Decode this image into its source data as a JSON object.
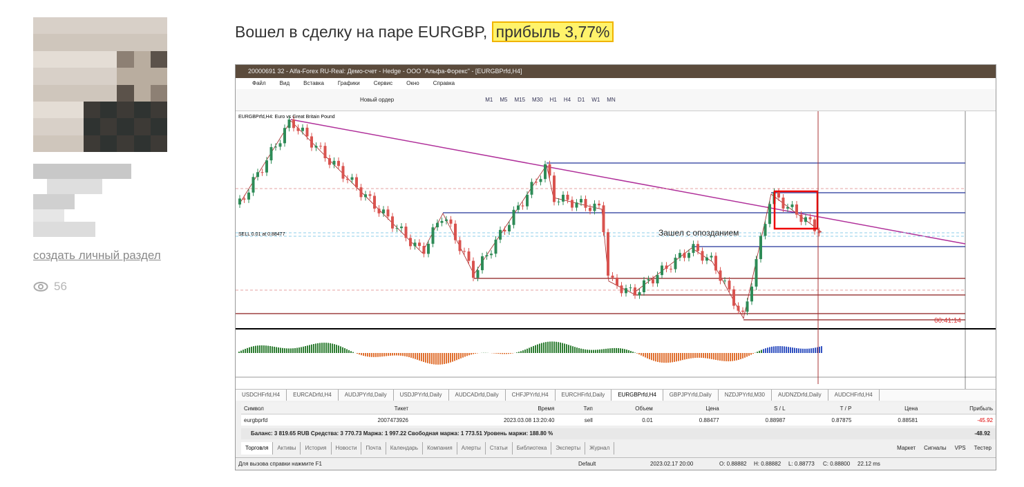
{
  "sidebar": {
    "link": "создать личный раздел",
    "views": "56"
  },
  "post": {
    "title": "Вошел в сделку на паре EURGBP,",
    "highlight": "прибыль 3,77%"
  },
  "terminal": {
    "window_title": "20000691 32 - Alfa-Forex RU-Real: Демо-счет - Hedge - ООО \"Альфа-Форекс\" - [EURGBPrfd,H4]",
    "menu": [
      "Файл",
      "Вид",
      "Вставка",
      "Графики",
      "Сервис",
      "Окно",
      "Справка"
    ],
    "new_order": "Новый ордер",
    "timeframes": [
      "M1",
      "M5",
      "M15",
      "M30",
      "H1",
      "H4",
      "D1",
      "W1",
      "MN"
    ],
    "chart_label": "EURGBPrfd,H4: Euro vs Great Britain Pound",
    "order_line": "SELL 0.01 at 0.88477",
    "annotation": "Зашел с опозданием",
    "timer": "00:41:14",
    "symbol_tabs": [
      "USDCHFrfd,H4",
      "EURCADrfd,H4",
      "AUDJPYrfd,Daily",
      "USDJPYrfd,Daily",
      "AUDCADrfd,Daily",
      "CHFJPYrfd,H4",
      "EURCHFrfd,Daily",
      "EURGBPrfd,H4",
      "GBPJPYrfd,Daily",
      "NZDJPYrfd,M30",
      "AUDNZDrfd,Daily",
      "AUDCHFrfd,H4"
    ],
    "orders_table": {
      "headers": [
        "Символ",
        "Тикет",
        "Время",
        "Тип",
        "Объем",
        "Цена",
        "S / L",
        "T / P",
        "Цена",
        "Прибыль"
      ],
      "rows": [
        [
          "eurgbprfd",
          "2007473926",
          "2023.03.08 13:20:40",
          "sell",
          "0.01",
          "0.88477",
          "0.88987",
          "0.87875",
          "0.88581",
          "-45.92"
        ]
      ]
    },
    "balance": "Баланс: 3 819.65 RUB  Средства: 3 770.73  Маржа: 1 997.22  Свободная маржа: 1 773.51  Уровень маржи: 188.80 %",
    "balance_total": "-48.92",
    "bottom_tabs": [
      "Торговля",
      "Активы",
      "История",
      "Новости",
      "Почта",
      "Календарь",
      "Компания",
      "Алерты",
      "Статьи",
      "Библиотека",
      "Эксперты",
      "Журнал"
    ],
    "right_links": [
      "Маркет",
      "Сигналы",
      "VPS",
      "Тестер"
    ],
    "status": [
      "Для вызова справки нажмите F1",
      "Default",
      "2023.02.17 20:00",
      "O: 0.88882",
      "H: 0.88882",
      "L: 0.88773",
      "C: 0.88800",
      "22.12 ms"
    ]
  }
}
